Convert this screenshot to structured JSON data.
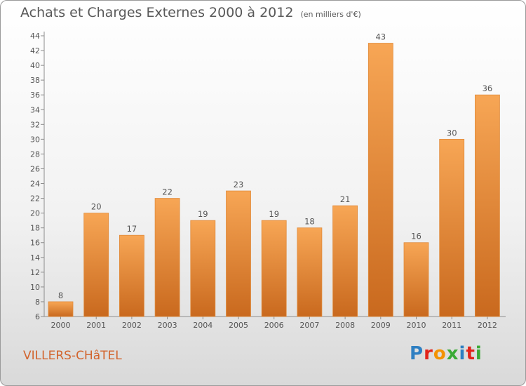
{
  "header": {
    "title": "Achats et Charges Externes 2000 à 2012",
    "unit": "(en milliers d'€)"
  },
  "footer": {
    "commune": "VILLERS-CHâTEL",
    "logo_text": "Proxiti"
  },
  "colors": {
    "bar_top": "#f7a655",
    "bar_bottom": "#c9691e",
    "bar_edge": "#e08a3a",
    "text": "#595959",
    "commune": "#d2642d",
    "logo": [
      "#2e7fc2",
      "#e2231a",
      "#f39200",
      "#3aaa35",
      "#2e7fc2",
      "#e2231a",
      "#3aaa35"
    ]
  },
  "chart_data": {
    "type": "bar",
    "title": "Achats et Charges Externes 2000 à 2012",
    "subtitle": "(en milliers d'€)",
    "categories": [
      "2000",
      "2001",
      "2002",
      "2003",
      "2004",
      "2005",
      "2006",
      "2007",
      "2008",
      "2009",
      "2010",
      "2011",
      "2012"
    ],
    "values": [
      8,
      20,
      17,
      22,
      19,
      23,
      19,
      18,
      21,
      43,
      16,
      30,
      36
    ],
    "ylim": [
      6,
      44
    ],
    "yticks": [
      6,
      8,
      10,
      12,
      14,
      16,
      18,
      20,
      22,
      24,
      26,
      28,
      30,
      32,
      34,
      36,
      38,
      40,
      42,
      44
    ],
    "grid": false,
    "legend": "none"
  }
}
